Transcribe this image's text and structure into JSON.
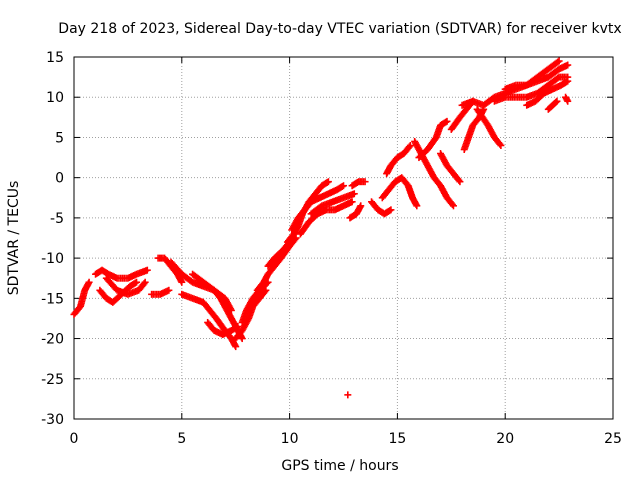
{
  "chart_data": {
    "type": "scatter",
    "title": "Day 218 of 2023, Sidereal Day-to-day VTEC variation (SDTVAR) for receiver kvtx",
    "xlabel": "GPS time / hours",
    "ylabel": "SDTVAR / TECUs",
    "xlim": [
      0,
      25
    ],
    "ylim": [
      -30,
      15
    ],
    "x_ticks": [
      "0",
      "5",
      "10",
      "15",
      "20",
      "25"
    ],
    "y_ticks": [
      "-30",
      "-25",
      "-20",
      "-15",
      "-10",
      "-5",
      "0",
      "5",
      "10",
      "15"
    ],
    "grid": true,
    "marker": "+",
    "series_color": "#ff0000",
    "tracks": [
      [
        [
          0.0,
          -17
        ],
        [
          0.3,
          -16
        ],
        [
          0.5,
          -14
        ],
        [
          0.7,
          -13
        ]
      ],
      [
        [
          1.0,
          -12
        ],
        [
          1.3,
          -11.5
        ],
        [
          1.6,
          -12
        ],
        [
          2.0,
          -12.5
        ],
        [
          2.5,
          -12.5
        ],
        [
          2.9,
          -12
        ],
        [
          3.4,
          -11.5
        ]
      ],
      [
        [
          1.2,
          -14
        ],
        [
          1.5,
          -15
        ],
        [
          1.8,
          -15.5
        ],
        [
          2.2,
          -14.5
        ],
        [
          2.6,
          -13.5
        ],
        [
          2.9,
          -13
        ]
      ],
      [
        [
          1.5,
          -12.5
        ],
        [
          2.0,
          -14
        ],
        [
          2.5,
          -14.5
        ],
        [
          3.0,
          -14
        ],
        [
          3.3,
          -13
        ]
      ],
      [
        [
          3.6,
          -14.5
        ],
        [
          4.0,
          -14.5
        ],
        [
          4.4,
          -14
        ]
      ],
      [
        [
          3.9,
          -10
        ],
        [
          4.2,
          -10
        ],
        [
          4.5,
          -11
        ],
        [
          4.8,
          -12
        ],
        [
          5.0,
          -13
        ]
      ],
      [
        [
          4.5,
          -10.5
        ],
        [
          5.0,
          -12
        ],
        [
          5.5,
          -13
        ],
        [
          6.0,
          -13.5
        ],
        [
          6.5,
          -14
        ],
        [
          7.0,
          -15
        ],
        [
          7.3,
          -16.5
        ]
      ],
      [
        [
          5.0,
          -14.5
        ],
        [
          5.5,
          -15
        ],
        [
          6.0,
          -15.5
        ],
        [
          6.3,
          -16.5
        ],
        [
          6.6,
          -17.5
        ],
        [
          7.0,
          -19
        ],
        [
          7.3,
          -20
        ],
        [
          7.5,
          -21
        ]
      ],
      [
        [
          5.5,
          -12
        ],
        [
          6.0,
          -13
        ],
        [
          6.5,
          -14
        ],
        [
          6.8,
          -15
        ],
        [
          7.2,
          -17
        ],
        [
          7.6,
          -19
        ],
        [
          7.8,
          -20
        ]
      ],
      [
        [
          6.2,
          -18
        ],
        [
          6.5,
          -19
        ],
        [
          6.9,
          -19.5
        ],
        [
          7.3,
          -19
        ],
        [
          7.6,
          -18.5
        ]
      ],
      [
        [
          7.8,
          -18
        ],
        [
          8.0,
          -16.5
        ],
        [
          8.3,
          -15
        ],
        [
          8.6,
          -14
        ],
        [
          9.0,
          -13
        ]
      ],
      [
        [
          7.5,
          -20
        ],
        [
          7.8,
          -19
        ],
        [
          8.1,
          -17.5
        ],
        [
          8.3,
          -16
        ],
        [
          8.6,
          -15
        ],
        [
          8.9,
          -14
        ]
      ],
      [
        [
          8.5,
          -14
        ],
        [
          8.8,
          -13
        ],
        [
          9.0,
          -12
        ],
        [
          9.3,
          -11
        ],
        [
          9.6,
          -10
        ],
        [
          10.0,
          -8.5
        ],
        [
          10.3,
          -7.5
        ]
      ],
      [
        [
          9.0,
          -11
        ],
        [
          9.3,
          -10
        ],
        [
          9.7,
          -9
        ],
        [
          10.0,
          -8
        ]
      ],
      [
        [
          9.9,
          -8
        ],
        [
          10.2,
          -7
        ],
        [
          10.4,
          -6
        ],
        [
          10.6,
          -4.5
        ],
        [
          10.9,
          -3
        ],
        [
          11.2,
          -2
        ],
        [
          11.5,
          -1
        ],
        [
          11.8,
          -0.5
        ]
      ],
      [
        [
          10.1,
          -6.5
        ],
        [
          10.4,
          -5
        ],
        [
          10.7,
          -4
        ],
        [
          11.0,
          -3
        ],
        [
          11.4,
          -2.5
        ],
        [
          11.8,
          -2
        ],
        [
          12.2,
          -1.5
        ],
        [
          12.5,
          -1
        ]
      ],
      [
        [
          10.5,
          -7
        ],
        [
          10.9,
          -5.5
        ],
        [
          11.3,
          -4.5
        ],
        [
          11.7,
          -4
        ],
        [
          12.1,
          -4
        ],
        [
          12.5,
          -3.5
        ],
        [
          12.9,
          -3
        ]
      ],
      [
        [
          11.0,
          -4.5
        ],
        [
          11.5,
          -3.5
        ],
        [
          12.0,
          -3
        ],
        [
          12.5,
          -2.5
        ],
        [
          13.0,
          -2
        ]
      ],
      [
        [
          12.9,
          -1
        ],
        [
          13.2,
          -0.5
        ],
        [
          13.5,
          -0.5
        ]
      ],
      [
        [
          12.8,
          -5
        ],
        [
          13.1,
          -4.5
        ],
        [
          13.3,
          -3.5
        ]
      ],
      [
        [
          13.8,
          -3
        ],
        [
          14.1,
          -4
        ],
        [
          14.4,
          -4.5
        ],
        [
          14.7,
          -4
        ]
      ],
      [
        [
          14.3,
          -2.5
        ],
        [
          14.6,
          -1.5
        ],
        [
          14.9,
          -0.5
        ],
        [
          15.2,
          0
        ],
        [
          15.5,
          -1
        ],
        [
          15.7,
          -2.5
        ],
        [
          15.9,
          -3.5
        ]
      ],
      [
        [
          14.5,
          0.5
        ],
        [
          14.7,
          1.5
        ],
        [
          15.0,
          2.5
        ],
        [
          15.3,
          3
        ],
        [
          15.6,
          4
        ]
      ],
      [
        [
          15.8,
          4.5
        ],
        [
          16.1,
          3
        ],
        [
          16.4,
          1.5
        ],
        [
          16.7,
          0
        ],
        [
          17.0,
          -1
        ],
        [
          17.3,
          -2.5
        ],
        [
          17.6,
          -3.5
        ]
      ],
      [
        [
          16.0,
          2.5
        ],
        [
          16.4,
          3.5
        ],
        [
          16.8,
          5
        ],
        [
          17.0,
          6.5
        ],
        [
          17.3,
          7
        ]
      ],
      [
        [
          17.0,
          3
        ],
        [
          17.3,
          1.5
        ],
        [
          17.6,
          0.5
        ],
        [
          17.9,
          -0.5
        ]
      ],
      [
        [
          17.5,
          6
        ],
        [
          17.9,
          7.5
        ],
        [
          18.2,
          8.5
        ],
        [
          18.5,
          9.5
        ]
      ],
      [
        [
          18.1,
          3.5
        ],
        [
          18.3,
          5
        ],
        [
          18.5,
          6.5
        ],
        [
          18.8,
          7.5
        ],
        [
          19.0,
          8.5
        ]
      ],
      [
        [
          18.0,
          9
        ],
        [
          18.5,
          9.5
        ],
        [
          19.0,
          9
        ],
        [
          19.5,
          10
        ],
        [
          20.0,
          10.5
        ],
        [
          20.5,
          11
        ],
        [
          21.0,
          11.5
        ],
        [
          21.5,
          12.5
        ],
        [
          22.0,
          13.5
        ],
        [
          22.5,
          14.5
        ]
      ],
      [
        [
          18.7,
          8.5
        ],
        [
          19.2,
          6.5
        ],
        [
          19.5,
          5
        ],
        [
          19.8,
          4
        ]
      ],
      [
        [
          19.5,
          9.5
        ],
        [
          20.0,
          10
        ],
        [
          20.5,
          10
        ],
        [
          21.0,
          10
        ],
        [
          21.5,
          10.5
        ],
        [
          22.0,
          11.5
        ],
        [
          22.5,
          12.5
        ],
        [
          22.9,
          12.5
        ]
      ],
      [
        [
          20.0,
          11
        ],
        [
          20.5,
          11.5
        ],
        [
          21.0,
          11.5
        ],
        [
          21.5,
          12
        ],
        [
          22.0,
          12.5
        ],
        [
          22.5,
          13.5
        ],
        [
          22.9,
          14
        ]
      ],
      [
        [
          21.0,
          9
        ],
        [
          21.4,
          9.5
        ],
        [
          21.8,
          10.5
        ],
        [
          22.2,
          11
        ],
        [
          22.6,
          11.5
        ],
        [
          22.9,
          12
        ]
      ],
      [
        [
          22.0,
          8.5
        ],
        [
          22.2,
          9
        ],
        [
          22.4,
          9.5
        ]
      ],
      [
        [
          22.8,
          10
        ],
        [
          22.9,
          9.5
        ]
      ],
      [
        [
          12.7,
          -27
        ]
      ]
    ]
  }
}
